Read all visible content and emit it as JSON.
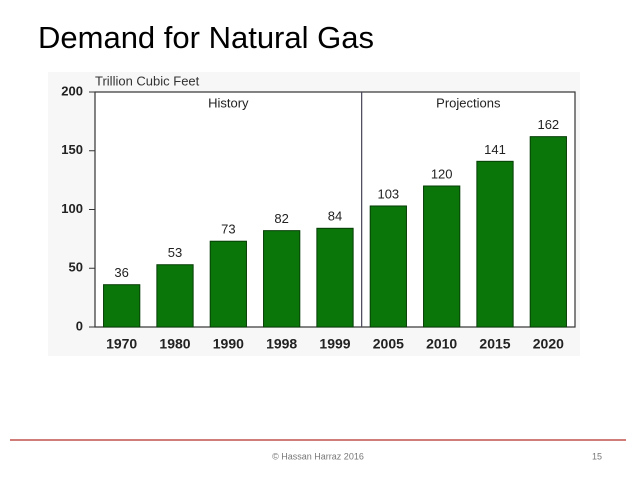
{
  "slide": {
    "title": "Demand for Natural Gas",
    "footer": "© Hassan Harraz 2016",
    "page_number": 15
  },
  "chart_data": {
    "type": "bar",
    "y_label": "Trillion Cubic Feet",
    "annotations": [
      "History",
      "Projections"
    ],
    "categories": [
      "1970",
      "1980",
      "1990",
      "1998",
      "1999",
      "2005",
      "2010",
      "2015",
      "2020"
    ],
    "values": [
      36,
      53,
      73,
      82,
      84,
      103,
      120,
      141,
      162
    ],
    "color": "#0a760a",
    "ylim": [
      0,
      200
    ],
    "yticks": [
      0,
      50,
      100,
      150,
      200
    ]
  }
}
